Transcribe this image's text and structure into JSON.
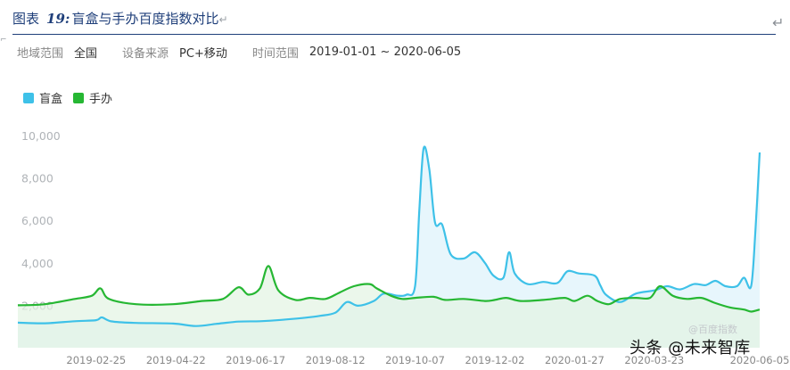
{
  "caption": {
    "prefix": "图表",
    "number": "19:",
    "title": "盲盒与手办百度指数对比",
    "para_mark": "↵"
  },
  "return_mark": "↵",
  "corner_mark": "⌐",
  "filters": {
    "region_label": "地域范围",
    "region_value": "全国",
    "device_label": "设备来源",
    "device_value": "PC+移动",
    "time_label": "时间范围",
    "time_value": "2019-01-01 ~ 2020-06-05"
  },
  "watermarks": {
    "baidu": "@百度指数",
    "brand": "头条 @未来智库"
  },
  "colors": {
    "blind_box": "#3ec1e8",
    "figure": "#26b733",
    "blind_box_fill": "#e3f5fb",
    "figure_fill": "#e2f4e3"
  },
  "chart_data": {
    "type": "line",
    "title": "",
    "ylim": [
      0,
      10000
    ],
    "yticks": [
      {
        "value": 2000,
        "label": "2,000"
      },
      {
        "value": 4000,
        "label": "4,000"
      },
      {
        "value": 6000,
        "label": "6,000"
      },
      {
        "value": 8000,
        "label": "8,000"
      },
      {
        "value": 10000,
        "label": "10,000"
      }
    ],
    "xlim": [
      "2019-01-01",
      "2020-06-05"
    ],
    "xticks": [
      "2019-02-25",
      "2019-04-22",
      "2019-06-17",
      "2019-08-12",
      "2019-10-07",
      "2019-12-02",
      "2020-01-27",
      "2020-03-23",
      "2020-06-05"
    ],
    "legend_position": "top-left",
    "series": [
      {
        "name": "盲盒",
        "color": "#3ec1e8",
        "points": [
          [
            "2019-01-01",
            1180
          ],
          [
            "2019-01-20",
            1150
          ],
          [
            "2019-02-10",
            1250
          ],
          [
            "2019-02-25",
            1300
          ],
          [
            "2019-03-01",
            1430
          ],
          [
            "2019-03-08",
            1240
          ],
          [
            "2019-03-25",
            1170
          ],
          [
            "2019-04-20",
            1140
          ],
          [
            "2019-05-06",
            1020
          ],
          [
            "2019-05-20",
            1120
          ],
          [
            "2019-06-05",
            1230
          ],
          [
            "2019-06-20",
            1250
          ],
          [
            "2019-07-05",
            1310
          ],
          [
            "2019-07-20",
            1400
          ],
          [
            "2019-08-01",
            1500
          ],
          [
            "2019-08-12",
            1650
          ],
          [
            "2019-08-20",
            2150
          ],
          [
            "2019-08-28",
            1980
          ],
          [
            "2019-09-08",
            2200
          ],
          [
            "2019-09-15",
            2550
          ],
          [
            "2019-09-25",
            2450
          ],
          [
            "2019-10-01",
            2500
          ],
          [
            "2019-10-07",
            2900
          ],
          [
            "2019-10-10",
            6500
          ],
          [
            "2019-10-13",
            9400
          ],
          [
            "2019-10-17",
            8400
          ],
          [
            "2019-10-21",
            5900
          ],
          [
            "2019-10-26",
            5800
          ],
          [
            "2019-11-01",
            4400
          ],
          [
            "2019-11-10",
            4200
          ],
          [
            "2019-11-18",
            4500
          ],
          [
            "2019-11-25",
            4000
          ],
          [
            "2019-12-01",
            3400
          ],
          [
            "2019-12-08",
            3300
          ],
          [
            "2019-12-12",
            4500
          ],
          [
            "2019-12-16",
            3500
          ],
          [
            "2019-12-25",
            3000
          ],
          [
            "2020-01-05",
            3100
          ],
          [
            "2020-01-15",
            3050
          ],
          [
            "2020-01-22",
            3600
          ],
          [
            "2020-01-30",
            3500
          ],
          [
            "2020-02-10",
            3400
          ],
          [
            "2020-02-14",
            2950
          ],
          [
            "2020-02-18",
            2500
          ],
          [
            "2020-02-28",
            2150
          ],
          [
            "2020-03-10",
            2550
          ],
          [
            "2020-03-23",
            2700
          ],
          [
            "2020-04-01",
            2900
          ],
          [
            "2020-04-10",
            2750
          ],
          [
            "2020-04-20",
            3000
          ],
          [
            "2020-04-28",
            2950
          ],
          [
            "2020-05-05",
            3150
          ],
          [
            "2020-05-12",
            2900
          ],
          [
            "2020-05-20",
            2900
          ],
          [
            "2020-05-25",
            3300
          ],
          [
            "2020-05-30",
            2900
          ],
          [
            "2020-06-02",
            5500
          ],
          [
            "2020-06-05",
            9200
          ]
        ]
      },
      {
        "name": "手办",
        "color": "#26b733",
        "points": [
          [
            "2019-01-01",
            2000
          ],
          [
            "2019-01-20",
            2050
          ],
          [
            "2019-02-10",
            2300
          ],
          [
            "2019-02-22",
            2450
          ],
          [
            "2019-02-28",
            2800
          ],
          [
            "2019-03-06",
            2300
          ],
          [
            "2019-03-25",
            2050
          ],
          [
            "2019-04-20",
            2050
          ],
          [
            "2019-05-10",
            2200
          ],
          [
            "2019-05-25",
            2300
          ],
          [
            "2019-06-05",
            2850
          ],
          [
            "2019-06-12",
            2500
          ],
          [
            "2019-06-20",
            2800
          ],
          [
            "2019-06-26",
            3850
          ],
          [
            "2019-07-03",
            2700
          ],
          [
            "2019-07-15",
            2250
          ],
          [
            "2019-07-25",
            2350
          ],
          [
            "2019-08-05",
            2300
          ],
          [
            "2019-08-15",
            2600
          ],
          [
            "2019-08-25",
            2900
          ],
          [
            "2019-09-05",
            3000
          ],
          [
            "2019-09-10",
            2800
          ],
          [
            "2019-09-20",
            2450
          ],
          [
            "2019-09-28",
            2300
          ],
          [
            "2019-10-07",
            2350
          ],
          [
            "2019-10-20",
            2400
          ],
          [
            "2019-10-28",
            2250
          ],
          [
            "2019-11-10",
            2300
          ],
          [
            "2019-11-25",
            2200
          ],
          [
            "2019-12-02",
            2250
          ],
          [
            "2019-12-10",
            2350
          ],
          [
            "2019-12-20",
            2200
          ],
          [
            "2020-01-05",
            2250
          ],
          [
            "2020-01-20",
            2350
          ],
          [
            "2020-01-27",
            2200
          ],
          [
            "2020-02-05",
            2450
          ],
          [
            "2020-02-12",
            2200
          ],
          [
            "2020-02-20",
            2050
          ],
          [
            "2020-02-28",
            2300
          ],
          [
            "2020-03-10",
            2350
          ],
          [
            "2020-03-20",
            2350
          ],
          [
            "2020-03-27",
            2900
          ],
          [
            "2020-04-05",
            2450
          ],
          [
            "2020-04-15",
            2300
          ],
          [
            "2020-04-25",
            2350
          ],
          [
            "2020-05-05",
            2100
          ],
          [
            "2020-05-15",
            1900
          ],
          [
            "2020-05-25",
            1800
          ],
          [
            "2020-05-30",
            1700
          ],
          [
            "2020-06-05",
            1800
          ]
        ]
      }
    ]
  }
}
